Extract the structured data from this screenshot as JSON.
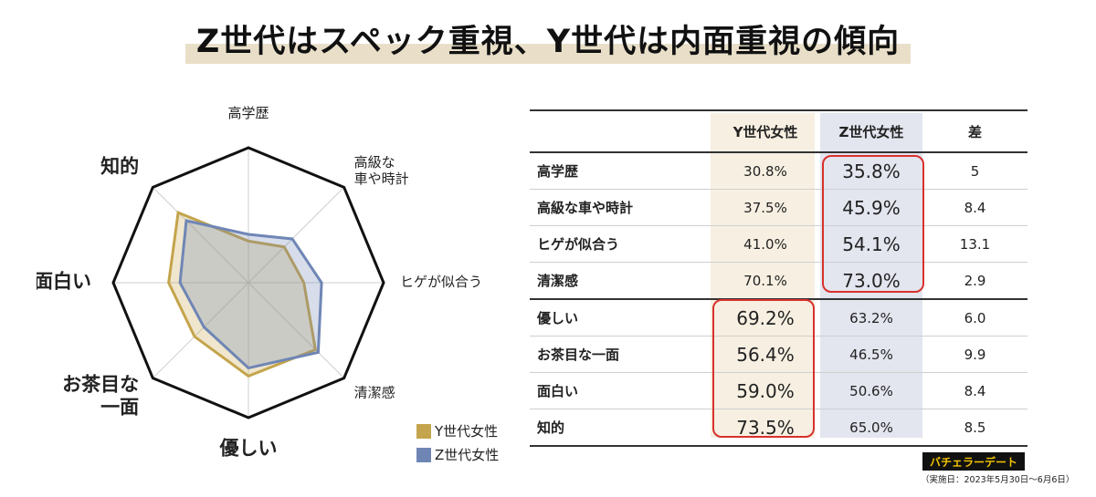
{
  "title": "Z世代はスペック重視、Y世代は内面重視の傾向",
  "colors": {
    "y_series": "#c4a44c",
    "z_series": "#6f86b5",
    "highlight": "#d9312c",
    "y_col": "#f7f0e2",
    "z_col": "#e3e5ef"
  },
  "chart_data": [
    {
      "type": "radar",
      "axes": [
        "高学歴",
        "高級な車や時計",
        "ヒゲが似合う",
        "清潔感",
        "優しい",
        "お茶目な一面",
        "面白い",
        "知的"
      ],
      "axis_label_lines": [
        [
          "高学歴"
        ],
        [
          "高級な",
          "車や時計"
        ],
        [
          "ヒゲが似合う"
        ],
        [
          "清潔感"
        ],
        [
          "優しい"
        ],
        [
          "お茶目な",
          "一面"
        ],
        [
          "面白い"
        ],
        [
          "知的"
        ]
      ],
      "axis_label_emphasis": [
        false,
        false,
        false,
        false,
        true,
        true,
        true,
        true
      ],
      "range": [
        0,
        100
      ],
      "grid": true,
      "series": [
        {
          "name": "Y世代女性",
          "values": [
            30.8,
            37.5,
            41.0,
            70.1,
            69.2,
            56.4,
            59.0,
            73.5
          ]
        },
        {
          "name": "Z世代女性",
          "values": [
            35.8,
            45.9,
            54.1,
            73.0,
            63.2,
            46.5,
            50.6,
            65.0
          ]
        }
      ],
      "legend": "bottom-right"
    },
    {
      "type": "table",
      "columns": [
        "",
        "Y世代女性",
        "Z世代女性",
        "差"
      ],
      "rows": [
        [
          "高学歴",
          "30.8%",
          "35.8%",
          "5"
        ],
        [
          "高級な車や時計",
          "37.5%",
          "45.9%",
          "8.4"
        ],
        [
          "ヒゲが似合う",
          "41.0%",
          "54.1%",
          "13.1"
        ],
        [
          "清潔感",
          "70.1%",
          "73.0%",
          "2.9"
        ],
        [
          "優しい",
          "69.2%",
          "63.2%",
          "6.0"
        ],
        [
          "お茶目な一面",
          "56.4%",
          "46.5%",
          "9.9"
        ],
        [
          "面白い",
          "59.0%",
          "50.6%",
          "8.4"
        ],
        [
          "知的",
          "73.5%",
          "65.0%",
          "8.5"
        ]
      ]
    }
  ],
  "logo": "バチェラーデート",
  "period": "（実施日：2023年5月30日〜6月6日）"
}
